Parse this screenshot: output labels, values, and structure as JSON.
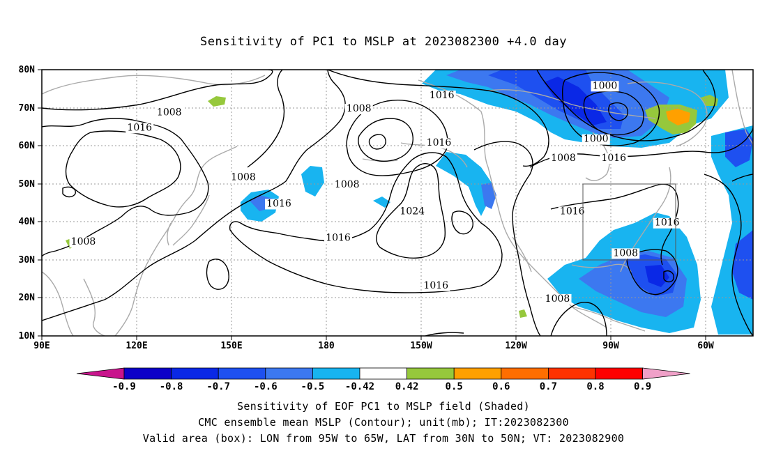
{
  "title": "Sensitivity of PC1 to MSLP at 2023082300 +4.0 day",
  "lon_labels": [
    "90E",
    "120E",
    "150E",
    "180",
    "150W",
    "120W",
    "90W",
    "60W"
  ],
  "lat_labels": [
    "80N",
    "70N",
    "60N",
    "50N",
    "40N",
    "30N",
    "20N",
    "10N"
  ],
  "contour_labels": [
    {
      "text": "1016",
      "lon": -135,
      "lat": 72.5
    },
    {
      "text": "1008",
      "lon": -163,
      "lat": 69
    },
    {
      "text": "1000",
      "lon": -80,
      "lat": 75
    },
    {
      "text": "1000",
      "lon": -83,
      "lat": 61
    },
    {
      "text": "1008",
      "lon": 133,
      "lat": 68
    },
    {
      "text": "1016",
      "lon": 123,
      "lat": 64
    },
    {
      "text": "1008",
      "lon": 158,
      "lat": 51
    },
    {
      "text": "1016",
      "lon": -136,
      "lat": 60
    },
    {
      "text": "1008",
      "lon": -94,
      "lat": 56
    },
    {
      "text": "1016",
      "lon": -77,
      "lat": 56
    },
    {
      "text": "1008",
      "lon": -167,
      "lat": 49
    },
    {
      "text": "1016",
      "lon": 170,
      "lat": 44
    },
    {
      "text": "1024",
      "lon": -145,
      "lat": 42
    },
    {
      "text": "1016",
      "lon": -91,
      "lat": 42
    },
    {
      "text": "1016",
      "lon": -59,
      "lat": 39
    },
    {
      "text": "1008",
      "lon": 104,
      "lat": 34
    },
    {
      "text": "1016",
      "lon": -170,
      "lat": 35
    },
    {
      "text": "1008",
      "lon": -73,
      "lat": 31
    },
    {
      "text": "1016",
      "lon": -137,
      "lat": 22.5
    },
    {
      "text": "1008",
      "lon": -96,
      "lat": 19
    }
  ],
  "colorbar": {
    "labels": [
      "-0.9",
      "-0.8",
      "-0.7",
      "-0.6",
      "-0.5",
      "-0.42",
      "0.42",
      "0.5",
      "0.6",
      "0.7",
      "0.8",
      "0.9"
    ],
    "colors": [
      "#0c00c8",
      "#0a28e6",
      "#1e50f0",
      "#3c78f0",
      "#18b4f0",
      "#ffffff",
      "#96c83c",
      "#ffa000",
      "#ff6e00",
      "#ff3200",
      "#ff0000"
    ],
    "low_end_color": "#c8148c",
    "high_end_color": "#f0a0c8"
  },
  "caption_lines": [
    "Sensitivity of EOF PC1 to MSLP field (Shaded)",
    "CMC ensemble mean MSLP (Contour); unit(mb); IT:2023082300",
    "Valid area (box): LON from 95W to 65W, LAT from 30N to 50N; VT: 2023082900"
  ]
}
